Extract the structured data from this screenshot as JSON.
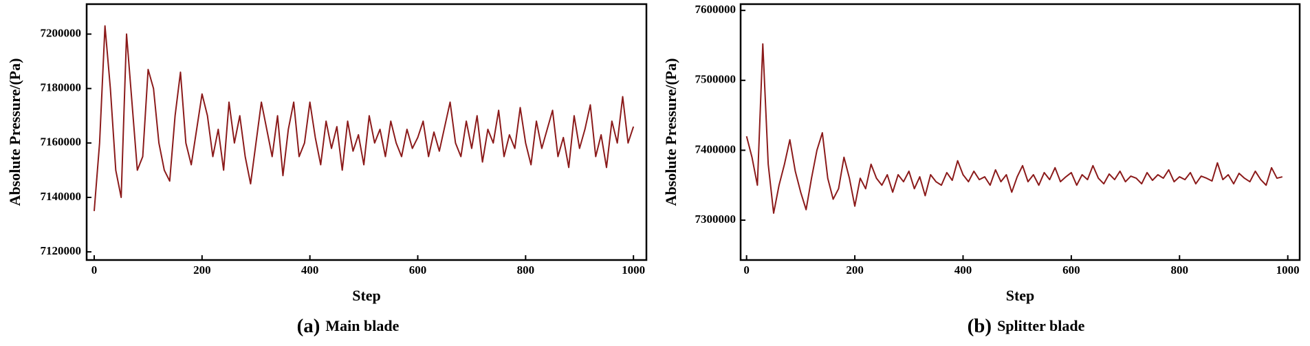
{
  "chart_data": [
    {
      "type": "line",
      "caption_label": "(a)",
      "caption": "Main blade",
      "xlabel": "Step",
      "ylabel": "Absolute Pressure/(Pa)",
      "color": "#8b1a1a",
      "xlim": [
        -14,
        1024
      ],
      "xticks": [
        0,
        200,
        400,
        600,
        800,
        1000
      ],
      "ylim": [
        7117000,
        7211000
      ],
      "yticks": [
        7120000,
        7140000,
        7160000,
        7180000,
        7200000
      ],
      "x": [
        0,
        10,
        20,
        30,
        40,
        50,
        60,
        70,
        80,
        90,
        100,
        110,
        120,
        130,
        140,
        150,
        160,
        170,
        180,
        190,
        200,
        210,
        220,
        230,
        240,
        250,
        260,
        270,
        280,
        290,
        300,
        310,
        320,
        330,
        340,
        350,
        360,
        370,
        380,
        390,
        400,
        410,
        420,
        430,
        440,
        450,
        460,
        470,
        480,
        490,
        500,
        510,
        520,
        530,
        540,
        550,
        560,
        570,
        580,
        590,
        600,
        610,
        620,
        630,
        640,
        650,
        660,
        670,
        680,
        690,
        700,
        710,
        720,
        730,
        740,
        750,
        760,
        770,
        780,
        790,
        800,
        810,
        820,
        830,
        840,
        850,
        860,
        870,
        880,
        890,
        900,
        910,
        920,
        930,
        940,
        950,
        960,
        970,
        980,
        990,
        1000
      ],
      "values": [
        7135000,
        7160000,
        7203000,
        7180000,
        7150000,
        7140000,
        7200000,
        7175000,
        7150000,
        7155000,
        7187000,
        7180000,
        7160000,
        7150000,
        7146000,
        7170000,
        7186000,
        7160000,
        7152000,
        7165000,
        7178000,
        7170000,
        7155000,
        7165000,
        7150000,
        7175000,
        7160000,
        7170000,
        7155000,
        7145000,
        7160000,
        7175000,
        7165000,
        7155000,
        7170000,
        7148000,
        7165000,
        7175000,
        7155000,
        7160000,
        7175000,
        7162000,
        7152000,
        7168000,
        7158000,
        7166000,
        7150000,
        7168000,
        7157000,
        7163000,
        7152000,
        7170000,
        7160000,
        7165000,
        7155000,
        7168000,
        7160000,
        7155000,
        7165000,
        7158000,
        7162000,
        7168000,
        7155000,
        7164000,
        7157000,
        7166000,
        7175000,
        7160000,
        7155000,
        7168000,
        7158000,
        7170000,
        7153000,
        7165000,
        7160000,
        7172000,
        7155000,
        7163000,
        7158000,
        7173000,
        7160000,
        7152000,
        7168000,
        7158000,
        7165000,
        7172000,
        7155000,
        7162000,
        7151000,
        7170000,
        7158000,
        7165000,
        7174000,
        7155000,
        7163000,
        7151000,
        7168000,
        7160000,
        7177000,
        7160000,
        7166000
      ]
    },
    {
      "type": "line",
      "caption_label": "(b)",
      "caption": "Splitter blade",
      "xlabel": "Step",
      "ylabel": "Absolute Pressure/(Pa)",
      "color": "#8b1a1a",
      "xlim": [
        -11,
        1022
      ],
      "xticks": [
        0,
        200,
        400,
        600,
        800,
        1000
      ],
      "ylim": [
        7243000,
        7609000
      ],
      "yticks": [
        7300000,
        7400000,
        7500000,
        7600000
      ],
      "x": [
        0,
        10,
        20,
        30,
        40,
        50,
        60,
        70,
        80,
        90,
        100,
        110,
        120,
        130,
        140,
        150,
        160,
        170,
        180,
        190,
        200,
        210,
        220,
        230,
        240,
        250,
        260,
        270,
        280,
        290,
        300,
        310,
        320,
        330,
        340,
        350,
        360,
        370,
        380,
        390,
        400,
        410,
        420,
        430,
        440,
        450,
        460,
        470,
        480,
        490,
        500,
        510,
        520,
        530,
        540,
        550,
        560,
        570,
        580,
        590,
        600,
        610,
        620,
        630,
        640,
        650,
        660,
        670,
        680,
        690,
        700,
        710,
        720,
        730,
        740,
        750,
        760,
        770,
        780,
        790,
        800,
        810,
        820,
        830,
        840,
        850,
        860,
        870,
        880,
        890,
        900,
        910,
        920,
        930,
        940,
        950,
        960,
        970,
        980,
        990
      ],
      "values": [
        7420000,
        7390000,
        7350000,
        7552000,
        7380000,
        7310000,
        7350000,
        7380000,
        7415000,
        7370000,
        7340000,
        7315000,
        7360000,
        7400000,
        7425000,
        7360000,
        7330000,
        7345000,
        7390000,
        7360000,
        7320000,
        7360000,
        7345000,
        7380000,
        7360000,
        7350000,
        7365000,
        7340000,
        7365000,
        7355000,
        7370000,
        7345000,
        7362000,
        7335000,
        7365000,
        7355000,
        7350000,
        7368000,
        7357000,
        7385000,
        7365000,
        7355000,
        7370000,
        7358000,
        7362000,
        7350000,
        7372000,
        7355000,
        7365000,
        7340000,
        7362000,
        7378000,
        7355000,
        7365000,
        7350000,
        7368000,
        7358000,
        7375000,
        7355000,
        7362000,
        7368000,
        7350000,
        7365000,
        7358000,
        7378000,
        7360000,
        7352000,
        7366000,
        7358000,
        7370000,
        7355000,
        7363000,
        7360000,
        7352000,
        7368000,
        7357000,
        7365000,
        7360000,
        7372000,
        7355000,
        7362000,
        7358000,
        7368000,
        7352000,
        7363000,
        7360000,
        7356000,
        7382000,
        7358000,
        7365000,
        7352000,
        7367000,
        7360000,
        7355000,
        7370000,
        7358000,
        7350000,
        7375000,
        7360000,
        7362000
      ]
    }
  ]
}
